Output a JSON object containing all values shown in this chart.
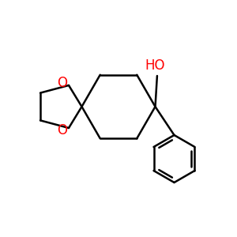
{
  "background_color": "#ffffff",
  "bond_color": "#000000",
  "oxygen_color": "#ff0000",
  "line_width": 1.8,
  "fig_size": [
    3.0,
    3.0
  ],
  "dpi": 100,
  "xlim": [
    0,
    10
  ],
  "ylim": [
    0,
    10
  ],
  "HO_label": "HO",
  "O_label": "O",
  "label_fontsize": 12
}
